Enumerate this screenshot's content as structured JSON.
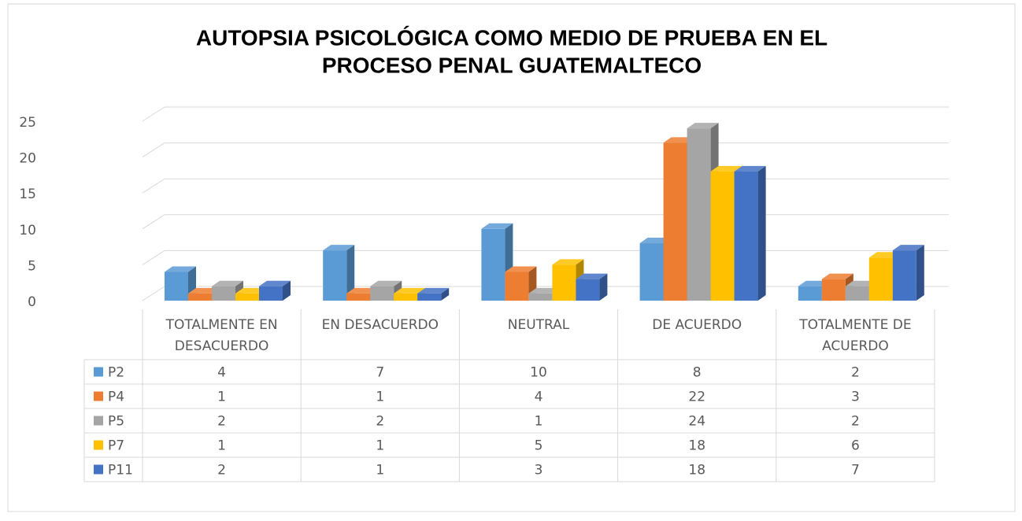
{
  "chart_data": {
    "type": "bar3d",
    "title": [
      "AUTOPSIA PSICOLÓGICA COMO MEDIO DE PRUEBA EN EL",
      "PROCESO PENAL GUATEMALTECO"
    ],
    "categories": [
      [
        "TOTALMENTE EN",
        "DESACUERDO"
      ],
      [
        "EN DESACUERDO"
      ],
      [
        "NEUTRAL"
      ],
      [
        "DE ACUERDO"
      ],
      [
        "TOTALMENTE DE",
        "ACUERDO"
      ]
    ],
    "series": [
      {
        "name": "P2",
        "color": "#5b9bd5",
        "values": [
          4,
          7,
          10,
          8,
          2
        ]
      },
      {
        "name": "P4",
        "color": "#ed7d31",
        "values": [
          1,
          1,
          4,
          22,
          3
        ]
      },
      {
        "name": "P5",
        "color": "#a5a5a5",
        "values": [
          2,
          2,
          1,
          24,
          2
        ]
      },
      {
        "name": "P7",
        "color": "#ffc000",
        "values": [
          1,
          1,
          5,
          18,
          6
        ]
      },
      {
        "name": "P11",
        "color": "#4472c4",
        "values": [
          2,
          1,
          3,
          18,
          7
        ]
      }
    ],
    "ylim": [
      0,
      25
    ],
    "yticks": [
      0,
      5,
      10,
      15,
      20,
      25
    ],
    "grid": true,
    "legend": "table"
  }
}
